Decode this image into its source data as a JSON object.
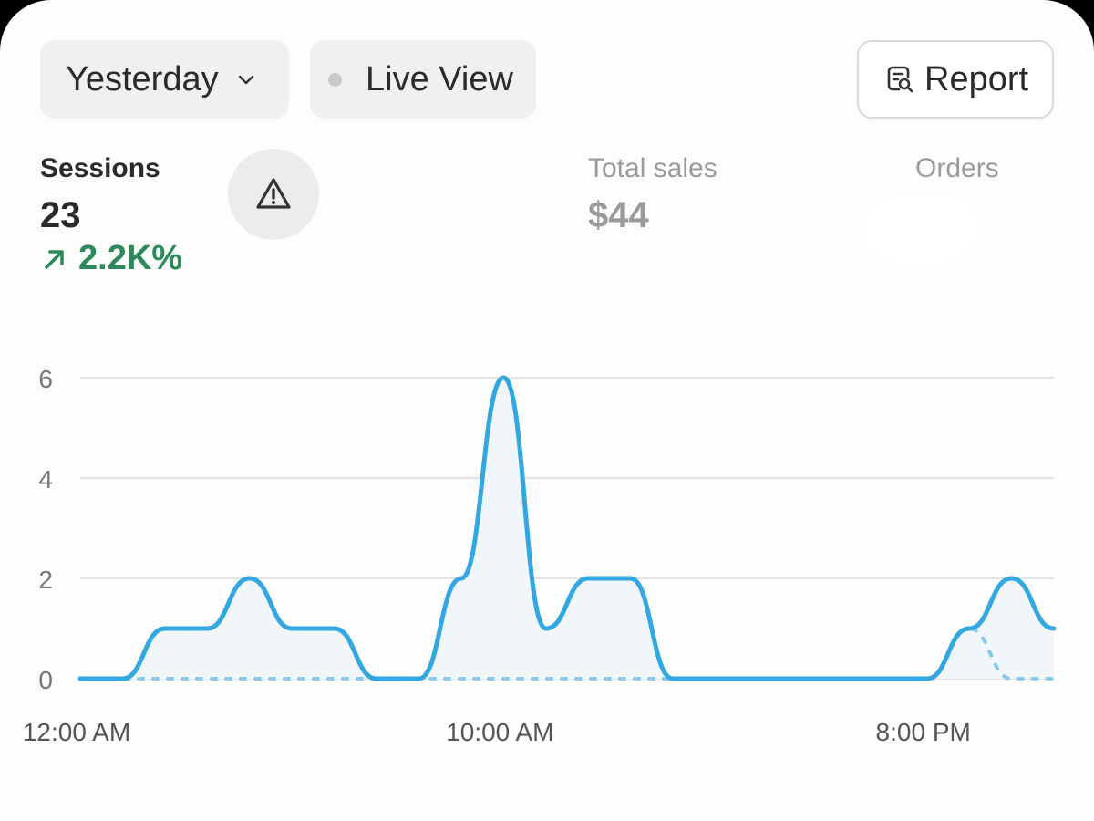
{
  "toolbar": {
    "date_label": "Yesterday",
    "live_label": "Live View",
    "report_label": "Report"
  },
  "metrics": {
    "sessions": {
      "label": "Sessions",
      "value": "23",
      "change": "2.2K%",
      "change_color": "#2e8a5a"
    },
    "total_sales": {
      "label": "Total sales",
      "value": "$44"
    },
    "orders": {
      "label": "Orders"
    }
  },
  "icons": {
    "date_chevron": "chevron-down-icon",
    "live_dot": "status-dot-icon",
    "report": "report-search-icon",
    "warning": "warning-triangle-icon",
    "trend": "arrow-up-right-icon"
  },
  "colors": {
    "primary_line": "#32a7e0",
    "comparison_line": "#8cc9e8",
    "area_fill": "#f1f6fb",
    "grid": "#e4e4e4",
    "up_trend": "#2e8a5a"
  },
  "chart_data": {
    "type": "line",
    "x_tick_labels": [
      "12:00 AM",
      "10:00 AM",
      "8:00 PM"
    ],
    "y_ticks": [
      0,
      2,
      4,
      6
    ],
    "ylim": [
      0,
      6
    ],
    "grid": true,
    "x": [
      0,
      1,
      2,
      3,
      4,
      5,
      6,
      7,
      8,
      9,
      10,
      11,
      12,
      13,
      14,
      15,
      16,
      17,
      18,
      19,
      20,
      21,
      22,
      23
    ],
    "series": [
      {
        "style": "solid",
        "area": true,
        "values": [
          0,
          0,
          1,
          1,
          2,
          1,
          1,
          0,
          0,
          2,
          6,
          1,
          2,
          2,
          0,
          0,
          0,
          0,
          0,
          0,
          0,
          1,
          2,
          1
        ]
      },
      {
        "style": "dashed",
        "area": false,
        "values": [
          0,
          0,
          0,
          0,
          0,
          0,
          0,
          0,
          0,
          0,
          0,
          0,
          0,
          0,
          0,
          0,
          0,
          0,
          0,
          0,
          0,
          1,
          0,
          0
        ]
      }
    ]
  }
}
